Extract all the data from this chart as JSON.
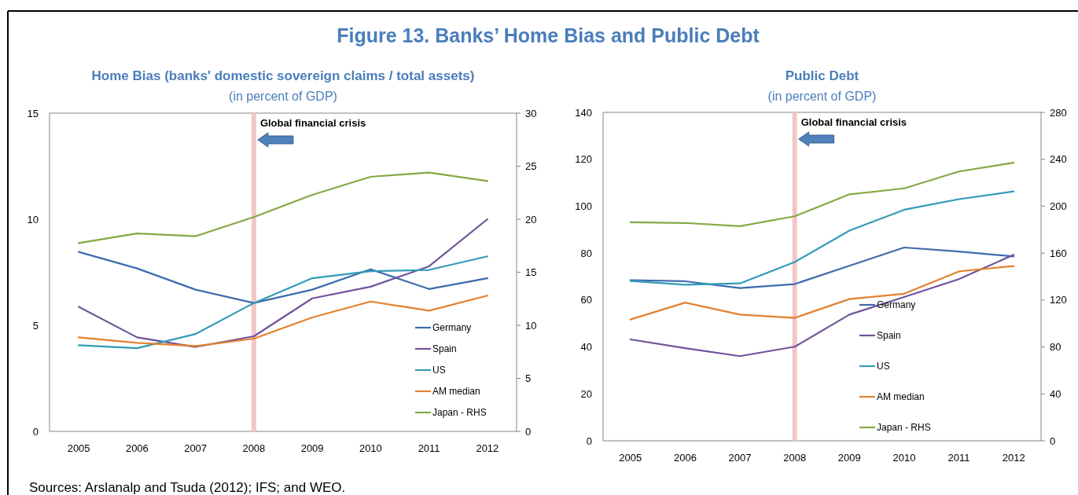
{
  "chart_data": [
    {
      "type": "line",
      "title": "Home Bias (banks' domestic sovereign claims / total assets)",
      "subtitle": "(in percent of GDP)",
      "categories": [
        "2005",
        "2006",
        "2007",
        "2008",
        "2009",
        "2010",
        "2011",
        "2012"
      ],
      "series": [
        {
          "name": "Germany",
          "color": "#3d6cae",
          "values": [
            8.46,
            7.68,
            6.68,
            6.05,
            6.68,
            7.64,
            6.71,
            7.22
          ]
        },
        {
          "name": "Spain",
          "color": "#70539a",
          "values": [
            5.87,
            4.43,
            3.98,
            4.48,
            6.27,
            6.82,
            7.78,
            10.0
          ]
        },
        {
          "name": "US",
          "color": "#339bb8",
          "values": [
            4.06,
            3.92,
            4.59,
            6.05,
            7.22,
            7.55,
            7.61,
            8.25
          ]
        },
        {
          "name": "AM median",
          "color": "#e3812f",
          "values": [
            4.43,
            4.17,
            4.02,
            4.37,
            5.37,
            6.12,
            5.69,
            6.4
          ]
        },
        {
          "name": "Japan - RHS",
          "color": "#85a844",
          "axis": "y2",
          "values": [
            17.75,
            18.66,
            18.4,
            20.2,
            22.3,
            24.0,
            24.4,
            23.6
          ]
        }
      ],
      "ylim": [
        0,
        15
      ],
      "yticks": [
        0,
        5,
        10,
        15
      ],
      "y2lim": [
        0,
        30
      ],
      "y2ticks": [
        0,
        5,
        10,
        15,
        20,
        25,
        30
      ],
      "grid": false,
      "legend": "bottom right",
      "ref_lines": [
        {
          "axis": "x",
          "value": "2008",
          "label": "Global financial crisis",
          "color": "#f2c6c6"
        }
      ],
      "annotations": [
        "Figure 13. Banks’ Home Bias and Public Debt",
        "Sources: Arslanalp and Tsuda (2012); IFS; and WEO."
      ]
    },
    {
      "type": "line",
      "title": "Public Debt",
      "subtitle": "(in percent of GDP)",
      "categories": [
        "2005",
        "2006",
        "2007",
        "2008",
        "2009",
        "2010",
        "2011",
        "2012"
      ],
      "series": [
        {
          "name": "Germany",
          "color": "#3d6cae",
          "values": [
            68.5,
            68.0,
            65.1,
            66.8,
            74.6,
            82.4,
            80.7,
            78.6
          ]
        },
        {
          "name": "Spain",
          "color": "#70539a",
          "values": [
            43.2,
            39.5,
            36.1,
            40.1,
            53.8,
            61.3,
            68.9,
            79.3
          ]
        },
        {
          "name": "US",
          "color": "#339bb8",
          "values": [
            68.1,
            66.5,
            67.1,
            76.2,
            89.6,
            98.5,
            103.0,
            106.3
          ]
        },
        {
          "name": "AM median",
          "color": "#e3812f",
          "values": [
            51.7,
            58.9,
            53.8,
            52.4,
            60.4,
            62.7,
            72.2,
            74.5
          ]
        },
        {
          "name": "Japan - RHS",
          "color": "#85a844",
          "axis": "y2",
          "values": [
            186.3,
            185.7,
            182.9,
            191.4,
            210.1,
            215.2,
            229.6,
            237.0
          ]
        }
      ],
      "ylim": [
        0,
        140
      ],
      "yticks": [
        0,
        20,
        40,
        60,
        80,
        100,
        120,
        140
      ],
      "y2lim": [
        0,
        280
      ],
      "y2ticks": [
        0,
        40,
        80,
        120,
        160,
        200,
        240,
        280
      ],
      "grid": false,
      "legend": "bottom",
      "ref_lines": [
        {
          "axis": "x",
          "value": "2008",
          "label": "Global financial crisis",
          "color": "#f2c6c6"
        }
      ]
    }
  ]
}
